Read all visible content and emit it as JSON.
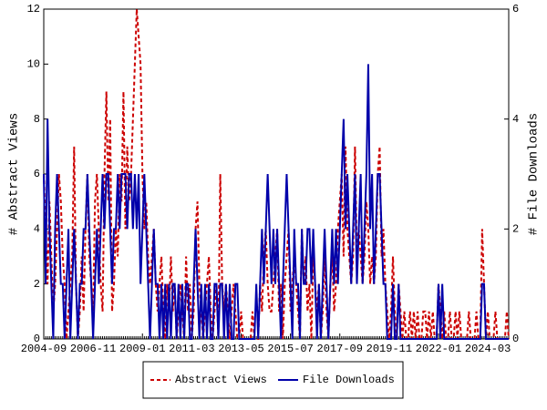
{
  "chart_data": {
    "type": "line",
    "ylabel": "# Abstract Views",
    "y2label": "# File Downloads",
    "categories": [
      "2004-09",
      null,
      null,
      null,
      null,
      null,
      null,
      null,
      null,
      null,
      null,
      null,
      null,
      null,
      null,
      null,
      null,
      null,
      null,
      null,
      null,
      null,
      null,
      null,
      null,
      null,
      "2006-11",
      null,
      null,
      null,
      null,
      null,
      null,
      null,
      null,
      null,
      null,
      null,
      null,
      null,
      null,
      null,
      null,
      null,
      null,
      null,
      null,
      null,
      null,
      null,
      null,
      null,
      "2009-01",
      null,
      null,
      null,
      null,
      null,
      null,
      null,
      null,
      null,
      null,
      null,
      null,
      null,
      null,
      null,
      null,
      null,
      null,
      null,
      null,
      null,
      null,
      null,
      null,
      null,
      "2011-03",
      null,
      null,
      null,
      null,
      null,
      null,
      null,
      null,
      null,
      null,
      null,
      null,
      null,
      null,
      null,
      null,
      null,
      null,
      null,
      null,
      null,
      null,
      null,
      null,
      null,
      "2013-05",
      null,
      null,
      null,
      null,
      null,
      null,
      null,
      null,
      null,
      null,
      null,
      null,
      null,
      null,
      null,
      null,
      null,
      null,
      null,
      null,
      null,
      null,
      null,
      null,
      null,
      "2015-07",
      null,
      null,
      null,
      null,
      null,
      null,
      null,
      null,
      null,
      null,
      null,
      null,
      null,
      null,
      null,
      null,
      null,
      null,
      null,
      null,
      null,
      null,
      null,
      null,
      null,
      "2017-09",
      null,
      null,
      null,
      null,
      null,
      null,
      null,
      null,
      null,
      null,
      null,
      null,
      null,
      null,
      null,
      null,
      null,
      null,
      null,
      null,
      null,
      null,
      null,
      null,
      null,
      "2019-11",
      null,
      null,
      null,
      null,
      null,
      null,
      null,
      null,
      null,
      null,
      null,
      null,
      null,
      null,
      null,
      null,
      null,
      null,
      null,
      null,
      null,
      null,
      null,
      null,
      null,
      "2022-01",
      null,
      null,
      null,
      null,
      null,
      null,
      null,
      null,
      null,
      null,
      null,
      null,
      null,
      null,
      null,
      null,
      null,
      null,
      null,
      null,
      null,
      null,
      null,
      null,
      null,
      "2024-03",
      null,
      null,
      null,
      null,
      null,
      null,
      null,
      null,
      null,
      null,
      null
    ],
    "series": [
      {
        "name": "Abstract Views",
        "color": "#cc0000",
        "line_style": "dashed",
        "axis": "y",
        "values": [
          6,
          4,
          2,
          5,
          3,
          1,
          2,
          4,
          6,
          5,
          3,
          2,
          0,
          1,
          2,
          3,
          7,
          2,
          0,
          1,
          3,
          1,
          4,
          6,
          3,
          2,
          1,
          5,
          6,
          4,
          2,
          1,
          6,
          9,
          5,
          8,
          1,
          2,
          4,
          3,
          6,
          5,
          9,
          4,
          7,
          5,
          6,
          8,
          10,
          12,
          11,
          10,
          6,
          4,
          5,
          3,
          2,
          3,
          4,
          2,
          1,
          2,
          3,
          1,
          0,
          2,
          1,
          3,
          1,
          2,
          0,
          1,
          2,
          1,
          0,
          3,
          1,
          2,
          0,
          1,
          4,
          5,
          2,
          1,
          0,
          1,
          2,
          3,
          1,
          0,
          1,
          2,
          0,
          6,
          2,
          1,
          2,
          1,
          0,
          1,
          2,
          1,
          0,
          0,
          1,
          0,
          0,
          0,
          0,
          0,
          1,
          0,
          0,
          0,
          2,
          1,
          3,
          4,
          2,
          1,
          1,
          2,
          3,
          4,
          1,
          2,
          0,
          2,
          3,
          4,
          1,
          2,
          3,
          2,
          1,
          0,
          4,
          2,
          3,
          1,
          2,
          0,
          3,
          2,
          1,
          2,
          0,
          1,
          3,
          1,
          0,
          2,
          3,
          1,
          2,
          4,
          5,
          6,
          3,
          7,
          4,
          3,
          2,
          3,
          7,
          3,
          4,
          3,
          2,
          3,
          5,
          4,
          2,
          3,
          2,
          3,
          6,
          7,
          3,
          4,
          2,
          1,
          0,
          1,
          3,
          1,
          0,
          2,
          1,
          0,
          1,
          0,
          0,
          1,
          0,
          1,
          0,
          1,
          0,
          0,
          1,
          1,
          0,
          1,
          0,
          1,
          0,
          0,
          2,
          1,
          0,
          1,
          0,
          0,
          1,
          0,
          0,
          1,
          0,
          1,
          0,
          0,
          0,
          0,
          1,
          0,
          0,
          0,
          1,
          0,
          0,
          4,
          2,
          0,
          1,
          0,
          0,
          0,
          1,
          0,
          0,
          0,
          0,
          0,
          1,
          0
        ]
      },
      {
        "name": "File Downloads",
        "color": "#0000aa",
        "line_style": "solid",
        "axis": "y2",
        "values": [
          3,
          1,
          4,
          2,
          1,
          0,
          2,
          3,
          2,
          1,
          1,
          0,
          1,
          2,
          0,
          1,
          2,
          1,
          0,
          1,
          1,
          2,
          2,
          3,
          2,
          1,
          0,
          1,
          2,
          1,
          2,
          3,
          2,
          3,
          3,
          2,
          1,
          2,
          2,
          3,
          2,
          3,
          3,
          3,
          2,
          3,
          3,
          2,
          3,
          2,
          3,
          1,
          2,
          3,
          2,
          1,
          0,
          1,
          2,
          1,
          1,
          0,
          1,
          0,
          1,
          0,
          1,
          0,
          1,
          1,
          0,
          1,
          0,
          1,
          0,
          1,
          1,
          0,
          0,
          1,
          2,
          1,
          0,
          1,
          0,
          1,
          0,
          1,
          0,
          0,
          1,
          1,
          0,
          1,
          1,
          0,
          1,
          0,
          1,
          0,
          0,
          1,
          1,
          0,
          0,
          0,
          0,
          0,
          0,
          0,
          0,
          0,
          1,
          0,
          1,
          2,
          1,
          2,
          3,
          2,
          1,
          2,
          1,
          2,
          1,
          0,
          1,
          2,
          3,
          2,
          1,
          0,
          2,
          1,
          1,
          0,
          2,
          1,
          1,
          2,
          2,
          1,
          2,
          1,
          0,
          1,
          0,
          1,
          2,
          1,
          0,
          1,
          2,
          1,
          2,
          1,
          2,
          3,
          4,
          2,
          3,
          2,
          1,
          2,
          3,
          1,
          2,
          3,
          1,
          2,
          3,
          5,
          2,
          3,
          1,
          2,
          3,
          3,
          2,
          1,
          1,
          0,
          0,
          0,
          1,
          0,
          0,
          1,
          0,
          0,
          0,
          0,
          0,
          0,
          0,
          0,
          0,
          0,
          0,
          0,
          0,
          0,
          0,
          0,
          0,
          0,
          0,
          0,
          1,
          0,
          1,
          0,
          0,
          0,
          0,
          0,
          0,
          0,
          0,
          0,
          0,
          0,
          0,
          0,
          0,
          0,
          0,
          0,
          0,
          0,
          0,
          1,
          1,
          0,
          0,
          0,
          0,
          0,
          0,
          0,
          0,
          0,
          0,
          0,
          0,
          0
        ]
      }
    ],
    "ylim": [
      0,
      12
    ],
    "yticks": [
      0,
      2,
      4,
      6,
      8,
      10,
      12
    ],
    "y2lim": [
      0,
      6
    ],
    "y2ticks": [
      0,
      2,
      4,
      6
    ],
    "legend": "bottom"
  }
}
